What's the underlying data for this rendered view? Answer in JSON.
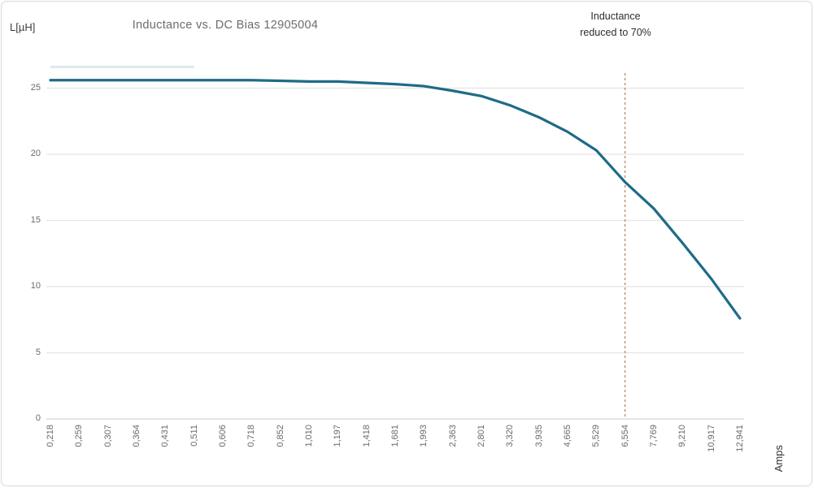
{
  "frame": {
    "background": "#ffffff",
    "border_color": "#d8d8d8"
  },
  "chart_data": {
    "type": "line",
    "title": "Inductance vs. DC Bias 12905004",
    "y_axis_unit": "L[µH]",
    "x_axis_unit": "Amps",
    "categories": [
      "0,218",
      "0,259",
      "0,307",
      "0,364",
      "0,431",
      "0,511",
      "0,606",
      "0,718",
      "0,852",
      "1,010",
      "1,197",
      "1,418",
      "1,681",
      "1,993",
      "2,363",
      "2,801",
      "3,320",
      "3,935",
      "4,665",
      "5,529",
      "6,554",
      "7,769",
      "9,210",
      "10,917",
      "12,941"
    ],
    "series": [
      {
        "name": "Inductance",
        "color": "#1f6b88",
        "values": [
          25.6,
          25.6,
          25.6,
          25.6,
          25.6,
          25.6,
          25.6,
          25.6,
          25.55,
          25.5,
          25.5,
          25.4,
          25.3,
          25.15,
          24.8,
          24.4,
          23.7,
          22.8,
          21.7,
          20.3,
          17.9,
          15.9,
          13.3,
          10.6,
          7.6
        ]
      }
    ],
    "ylim": [
      0,
      26.5
    ],
    "yticks": [
      0,
      5,
      10,
      15,
      20,
      25
    ],
    "grid": "horizontal",
    "legend": "none",
    "annotation": {
      "line1": "Inductance",
      "line2": "reduced to 70%",
      "x_category": "6,554",
      "x_index": 20,
      "line_color": "#b9906a",
      "line_style": "dashed"
    },
    "faint_overlay_segment": {
      "color": "#dde8ec",
      "value": 26.6,
      "from_index": 0,
      "to_index": 5
    }
  },
  "colors": {
    "grid_line": "#e4e4e4",
    "axis_line": "#d4d4d4",
    "tick_label": "#6a6a6a",
    "title_text": "#6c6c6c",
    "annotation_text": "#2d2d2d"
  }
}
